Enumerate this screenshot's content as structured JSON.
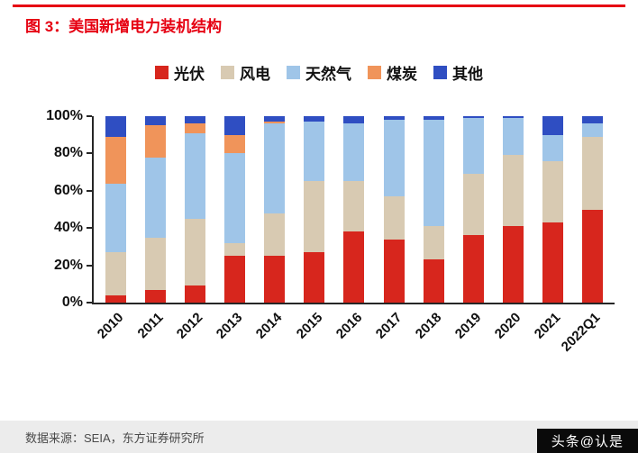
{
  "title": "图 3：美国新增电力装机结构",
  "footer": {
    "source": "数据来源：SEIA，东方证券研究所",
    "watermark": "头条@认是"
  },
  "chart_data": {
    "type": "bar",
    "stacked": true,
    "title": "美国新增电力装机结构",
    "categories": [
      "2010",
      "2011",
      "2012",
      "2013",
      "2014",
      "2015",
      "2016",
      "2017",
      "2018",
      "2019",
      "2020",
      "2021",
      "2022Q1"
    ],
    "series": [
      {
        "name": "光伏",
        "color": "#d7261d",
        "values": [
          4,
          7,
          9,
          25,
          25,
          27,
          38,
          34,
          23,
          36,
          41,
          43,
          50
        ]
      },
      {
        "name": "风电",
        "color": "#d8cab2",
        "values": [
          23,
          28,
          36,
          7,
          23,
          38,
          27,
          23,
          18,
          33,
          38,
          33,
          39
        ]
      },
      {
        "name": "天然气",
        "color": "#9fc5e8",
        "values": [
          37,
          43,
          46,
          48,
          48,
          32,
          31,
          41,
          57,
          30,
          20,
          14,
          7
        ]
      },
      {
        "name": "煤炭",
        "color": "#f0945a",
        "values": [
          25,
          17,
          5,
          10,
          1,
          0,
          0,
          0,
          0,
          0,
          0,
          0,
          0
        ]
      },
      {
        "name": "其他",
        "color": "#2f4ec2",
        "values": [
          11,
          5,
          4,
          10,
          3,
          3,
          4,
          2,
          2,
          1,
          1,
          10,
          4
        ]
      }
    ],
    "ylabel_ticks": [
      "0%",
      "20%",
      "40%",
      "60%",
      "80%",
      "100%"
    ],
    "ylim": [
      0,
      100
    ],
    "legend_position": "top",
    "grid": false
  }
}
